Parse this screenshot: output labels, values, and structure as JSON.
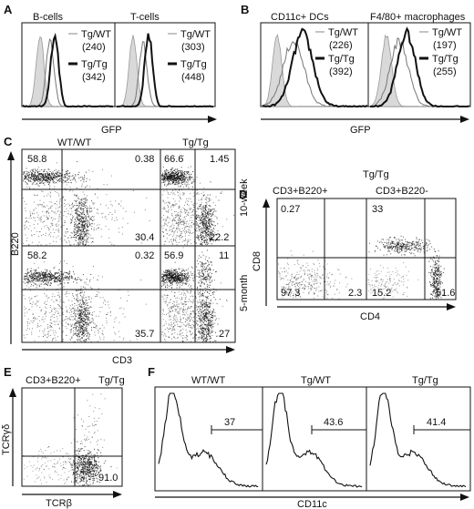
{
  "panel_letters": [
    "A",
    "B",
    "C",
    "D",
    "E",
    "F"
  ],
  "A": {
    "axis": "GFP",
    "plots": [
      {
        "title": "B-cells",
        "legend": [
          {
            "label": "Tg/WT",
            "mfi": "(240)"
          },
          {
            "label": "Tg/Tg",
            "mfi": "(342)"
          }
        ]
      },
      {
        "title": "T-cells",
        "legend": [
          {
            "label": "Tg/WT",
            "mfi": "(303)"
          },
          {
            "label": "Tg/Tg",
            "mfi": "(448)"
          }
        ]
      }
    ]
  },
  "B": {
    "axis": "GFP",
    "plots": [
      {
        "title": "CD11c+ DCs",
        "legend": [
          {
            "label": "Tg/WT",
            "mfi": "(226)"
          },
          {
            "label": "Tg/Tg",
            "mfi": "(392)"
          }
        ]
      },
      {
        "title": "F4/80+ macrophages",
        "legend": [
          {
            "label": "Tg/WT",
            "mfi": "(197)"
          },
          {
            "label": "Tg/Tg",
            "mfi": "(255)"
          }
        ]
      }
    ]
  },
  "C": {
    "col_titles": [
      "WT/WT",
      "Tg/Tg"
    ],
    "row_titles": [
      "10-week",
      "5-month"
    ],
    "xaxis": "CD3",
    "yaxis": "B220",
    "quadrants": [
      [
        "58.8",
        "0.38",
        "30.4"
      ],
      [
        "66.6",
        "1.45",
        "22.2"
      ],
      [
        "58.2",
        "0.32",
        "35.7"
      ],
      [
        "56.9",
        "11",
        "27"
      ]
    ]
  },
  "D": {
    "header": "Tg/Tg",
    "subtitles": [
      "CD3+B220+",
      "CD3+B220-"
    ],
    "xaxis": "CD4",
    "yaxis": "CD8",
    "quadrants": [
      [
        "0.27",
        "97.3",
        "2.3"
      ],
      [
        "33",
        "15.2",
        "51.6"
      ]
    ]
  },
  "E": {
    "title_left": "CD3+B220+",
    "title_right": "Tg/Tg",
    "xaxis": "TCRβ",
    "yaxis": "TCRγδ",
    "value": "91.0"
  },
  "F": {
    "xaxis": "CD11c",
    "plots": [
      {
        "title": "WT/WT",
        "gate": "37"
      },
      {
        "title": "Tg/WT",
        "gate": "43.6"
      },
      {
        "title": "Tg/Tg",
        "gate": "41.4"
      }
    ]
  }
}
